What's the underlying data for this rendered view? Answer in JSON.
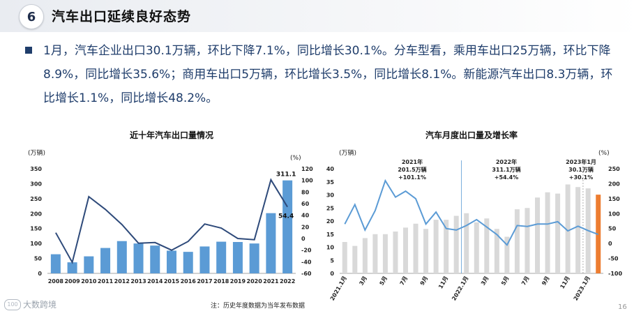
{
  "header": {
    "section_number": "6",
    "title": "汽车出口延续良好态势"
  },
  "summary": "1月，汽车企业出口30.1万辆，环比下降7.1%，同比增长30.1%。分车型看，乘用车出口25万辆，环比下降8.9%，同比增长35.6%；商用车出口5万辆，环比增长3.5%，同比增长8.1%。新能源汽车出口8.3万辆，环比增长1.1%，同比增长48.2%。",
  "footer": {
    "note": "注：历史年度数据为当年发布数据",
    "page_number": "16",
    "logo_text": "大数跨境",
    "logo_mark": "100"
  },
  "colors": {
    "blue_bar": "#5b9bd5",
    "line": "#2e4a7a",
    "gray_bar": "#d9d9d9",
    "highlight_bar": "#ed7d31",
    "monthly_line": "#5b9bd5"
  },
  "chart_data": [
    {
      "type": "bar",
      "title": "近十年汽车出口量情况",
      "yunit_left": "(万辆)",
      "yunit_right": "(%)",
      "categories": [
        "2008",
        "2009",
        "2010",
        "2011",
        "2012",
        "2013",
        "2014",
        "2015",
        "2016",
        "2017",
        "2018",
        "2019",
        "2020",
        "2021",
        "2022"
      ],
      "series": [
        {
          "kind": "bar",
          "axis": "left",
          "values": [
            64,
            37,
            57,
            85,
            108,
            100,
            93,
            76,
            72,
            90,
            106,
            105,
            100,
            201.5,
            311.1
          ]
        },
        {
          "kind": "line",
          "axis": "right",
          "values": [
            10,
            -41,
            72,
            50,
            24,
            -8,
            -7,
            -20,
            -5,
            25,
            18,
            0,
            -2,
            101.1,
            54.4
          ]
        }
      ],
      "ylim_left": [
        0,
        350
      ],
      "yticks_left": [
        0,
        50,
        100,
        150,
        200,
        250,
        300,
        350
      ],
      "ylim_right": [
        -60,
        120
      ],
      "yticks_right": [
        -60,
        -40,
        -20,
        0,
        20,
        40,
        60,
        80,
        100,
        120
      ],
      "data_labels": [
        {
          "category": "2022",
          "bar_label": "311.1",
          "line_label": "54.4"
        }
      ]
    },
    {
      "type": "bar",
      "title": "汽车月度出口量及增长率",
      "yunit_left": "(万辆)",
      "yunit_right": "(%)",
      "x_tick_labels": [
        "2021.1月",
        "3月",
        "5月",
        "7月",
        "9月",
        "11月",
        "2022.1月",
        "3月",
        "5月",
        "7月",
        "9月",
        "11月",
        "2023.1月"
      ],
      "bars": [
        12,
        10.5,
        13.5,
        15,
        15,
        16,
        17.5,
        19,
        17,
        20.5,
        20.5,
        22,
        23,
        19.5,
        21,
        17,
        14,
        24.5,
        25,
        29,
        31,
        30.5,
        34,
        33,
        32.5,
        30.1
      ],
      "growth": [
        65,
        130,
        45,
        110,
        210,
        155,
        175,
        150,
        65,
        105,
        50,
        45,
        60,
        80,
        55,
        30,
        -5,
        60,
        57,
        65,
        65,
        73,
        42,
        58,
        43,
        30.1
      ],
      "highlight_index": 25,
      "ylim_left": [
        0,
        40
      ],
      "yticks_left": [
        0,
        5,
        10,
        15,
        20,
        25,
        30,
        35,
        40
      ],
      "ylim_right": [
        -100,
        250
      ],
      "yticks_right": [
        -100,
        -50,
        0,
        50,
        100,
        150,
        200,
        250
      ],
      "annotations": [
        {
          "year": "2021年",
          "total": "201.5万辆",
          "growth": "+101.1%"
        },
        {
          "year": "2022年",
          "total": "311.1万辆",
          "growth": "+54.4%"
        },
        {
          "year": "2023年1月",
          "total": "30.1万辆",
          "growth": "+30.1%"
        }
      ]
    }
  ]
}
